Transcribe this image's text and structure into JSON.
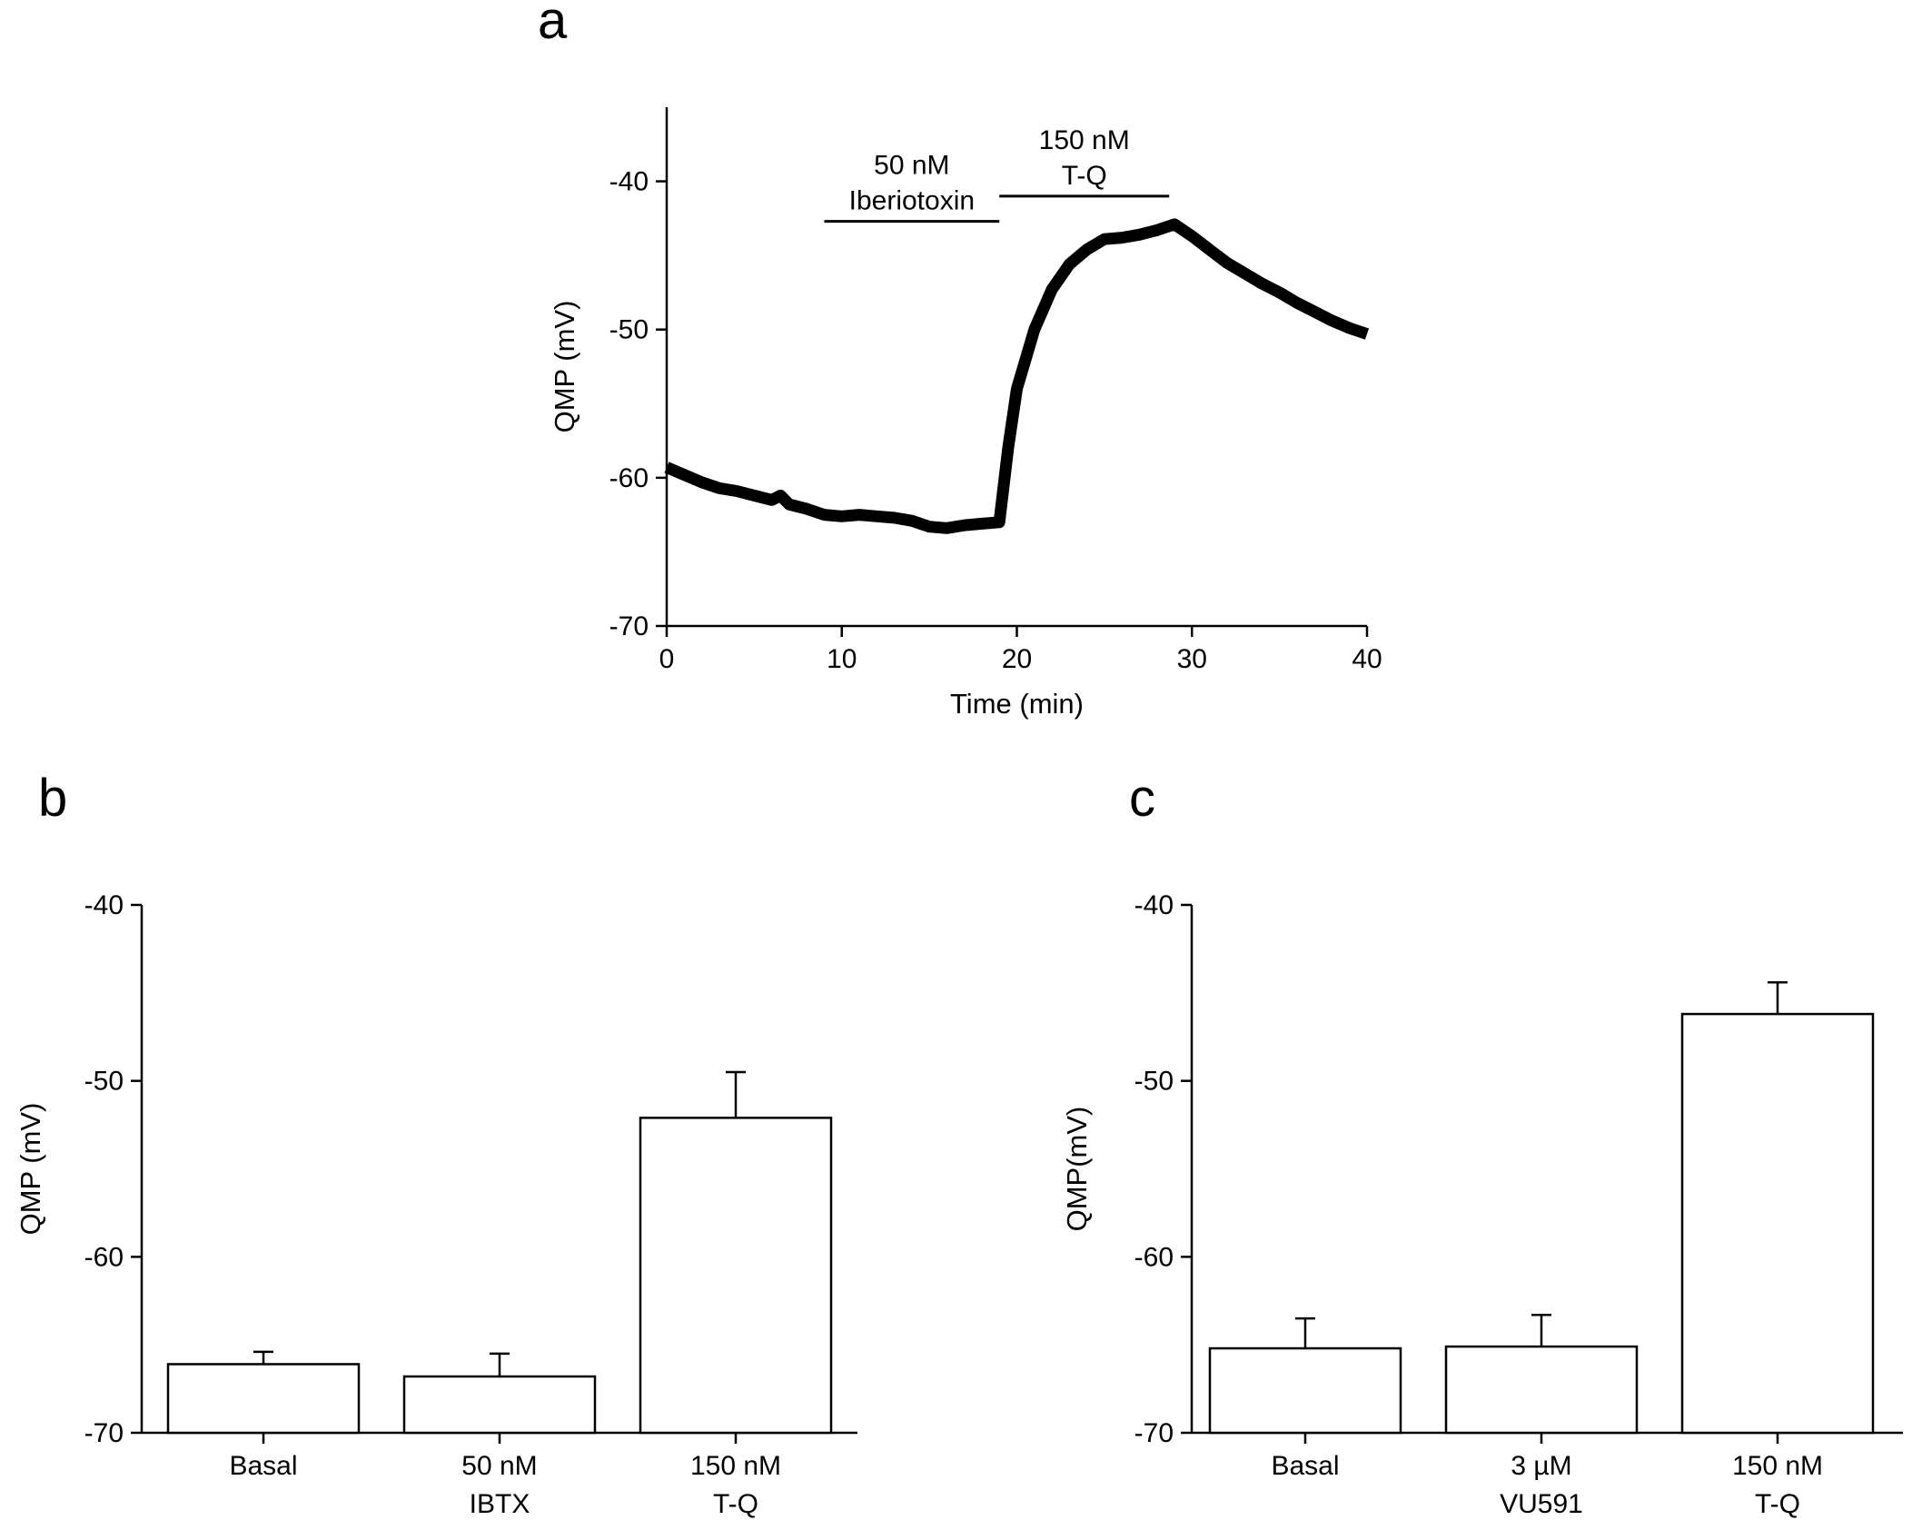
{
  "panels": {
    "a": {
      "letter": "a"
    },
    "b": {
      "letter": "b"
    },
    "c": {
      "letter": "c"
    }
  },
  "chart_data": [
    {
      "id": "a",
      "type": "line",
      "title": "",
      "xlabel": "Time (min)",
      "ylabel": "QMP (mV)",
      "xlim": [
        0,
        40
      ],
      "ylim": [
        -70,
        -35
      ],
      "xticks": [
        0,
        10,
        20,
        30,
        40
      ],
      "yticks": [
        -70,
        -60,
        -50,
        -40
      ],
      "grid": false,
      "legend": "none",
      "series": [
        {
          "name": "QMP",
          "x": [
            0,
            1,
            2,
            3,
            4,
            5,
            6,
            6.5,
            7,
            8,
            9,
            10,
            11,
            12,
            13,
            14,
            15,
            16,
            17,
            18,
            19,
            19.5,
            20,
            21,
            22,
            23,
            24,
            25,
            26,
            27,
            28,
            29,
            30,
            31,
            32,
            33,
            34,
            35,
            36,
            37,
            38,
            39,
            40
          ],
          "y": [
            -59.3,
            -59.8,
            -60.3,
            -60.7,
            -60.9,
            -61.2,
            -61.5,
            -61.2,
            -61.8,
            -62.1,
            -62.5,
            -62.6,
            -62.5,
            -62.6,
            -62.7,
            -62.9,
            -63.3,
            -63.4,
            -63.2,
            -63.1,
            -63.0,
            -58.0,
            -54.0,
            -50.0,
            -47.3,
            -45.6,
            -44.6,
            -43.9,
            -43.8,
            -43.6,
            -43.3,
            -42.9,
            -43.7,
            -44.6,
            -45.5,
            -46.2,
            -46.9,
            -47.5,
            -48.2,
            -48.8,
            -49.4,
            -49.9,
            -50.3
          ]
        }
      ],
      "annotations": [
        {
          "id": "iberiotoxin",
          "line1": "50 nM",
          "line2": "Iberiotoxin",
          "x_start": 9,
          "x_end": 19,
          "y": -42.7
        },
        {
          "id": "tq",
          "line1": "150 nM",
          "line2": "T-Q",
          "x_start": 19,
          "x_end": 28.7,
          "y": -41.0
        }
      ]
    },
    {
      "id": "b",
      "type": "bar",
      "title": "",
      "xlabel": "",
      "ylabel": "QMP (mV)",
      "ylim": [
        -70,
        -40
      ],
      "yticks": [
        -70,
        -60,
        -50,
        -40
      ],
      "grid": false,
      "legend": "none",
      "categories": [
        {
          "line1": "Basal",
          "line2": ""
        },
        {
          "line1": "50 nM",
          "line2": "IBTX"
        },
        {
          "line1": "150 nM",
          "line2": "T-Q"
        }
      ],
      "values": [
        -66.1,
        -66.8,
        -52.1
      ],
      "errors": [
        0.7,
        1.3,
        2.6
      ]
    },
    {
      "id": "c",
      "type": "bar",
      "title": "",
      "xlabel": "",
      "ylabel": "QMP(mV)",
      "ylim": [
        -70,
        -40
      ],
      "yticks": [
        -70,
        -60,
        -50,
        -40
      ],
      "grid": false,
      "legend": "none",
      "categories": [
        {
          "line1": "Basal",
          "line2": ""
        },
        {
          "line1": "3 µM",
          "line2": "VU591"
        },
        {
          "line1": "150 nM",
          "line2": "T-Q"
        }
      ],
      "values": [
        -65.2,
        -65.1,
        -46.2
      ],
      "errors": [
        1.7,
        1.8,
        1.8
      ]
    }
  ]
}
